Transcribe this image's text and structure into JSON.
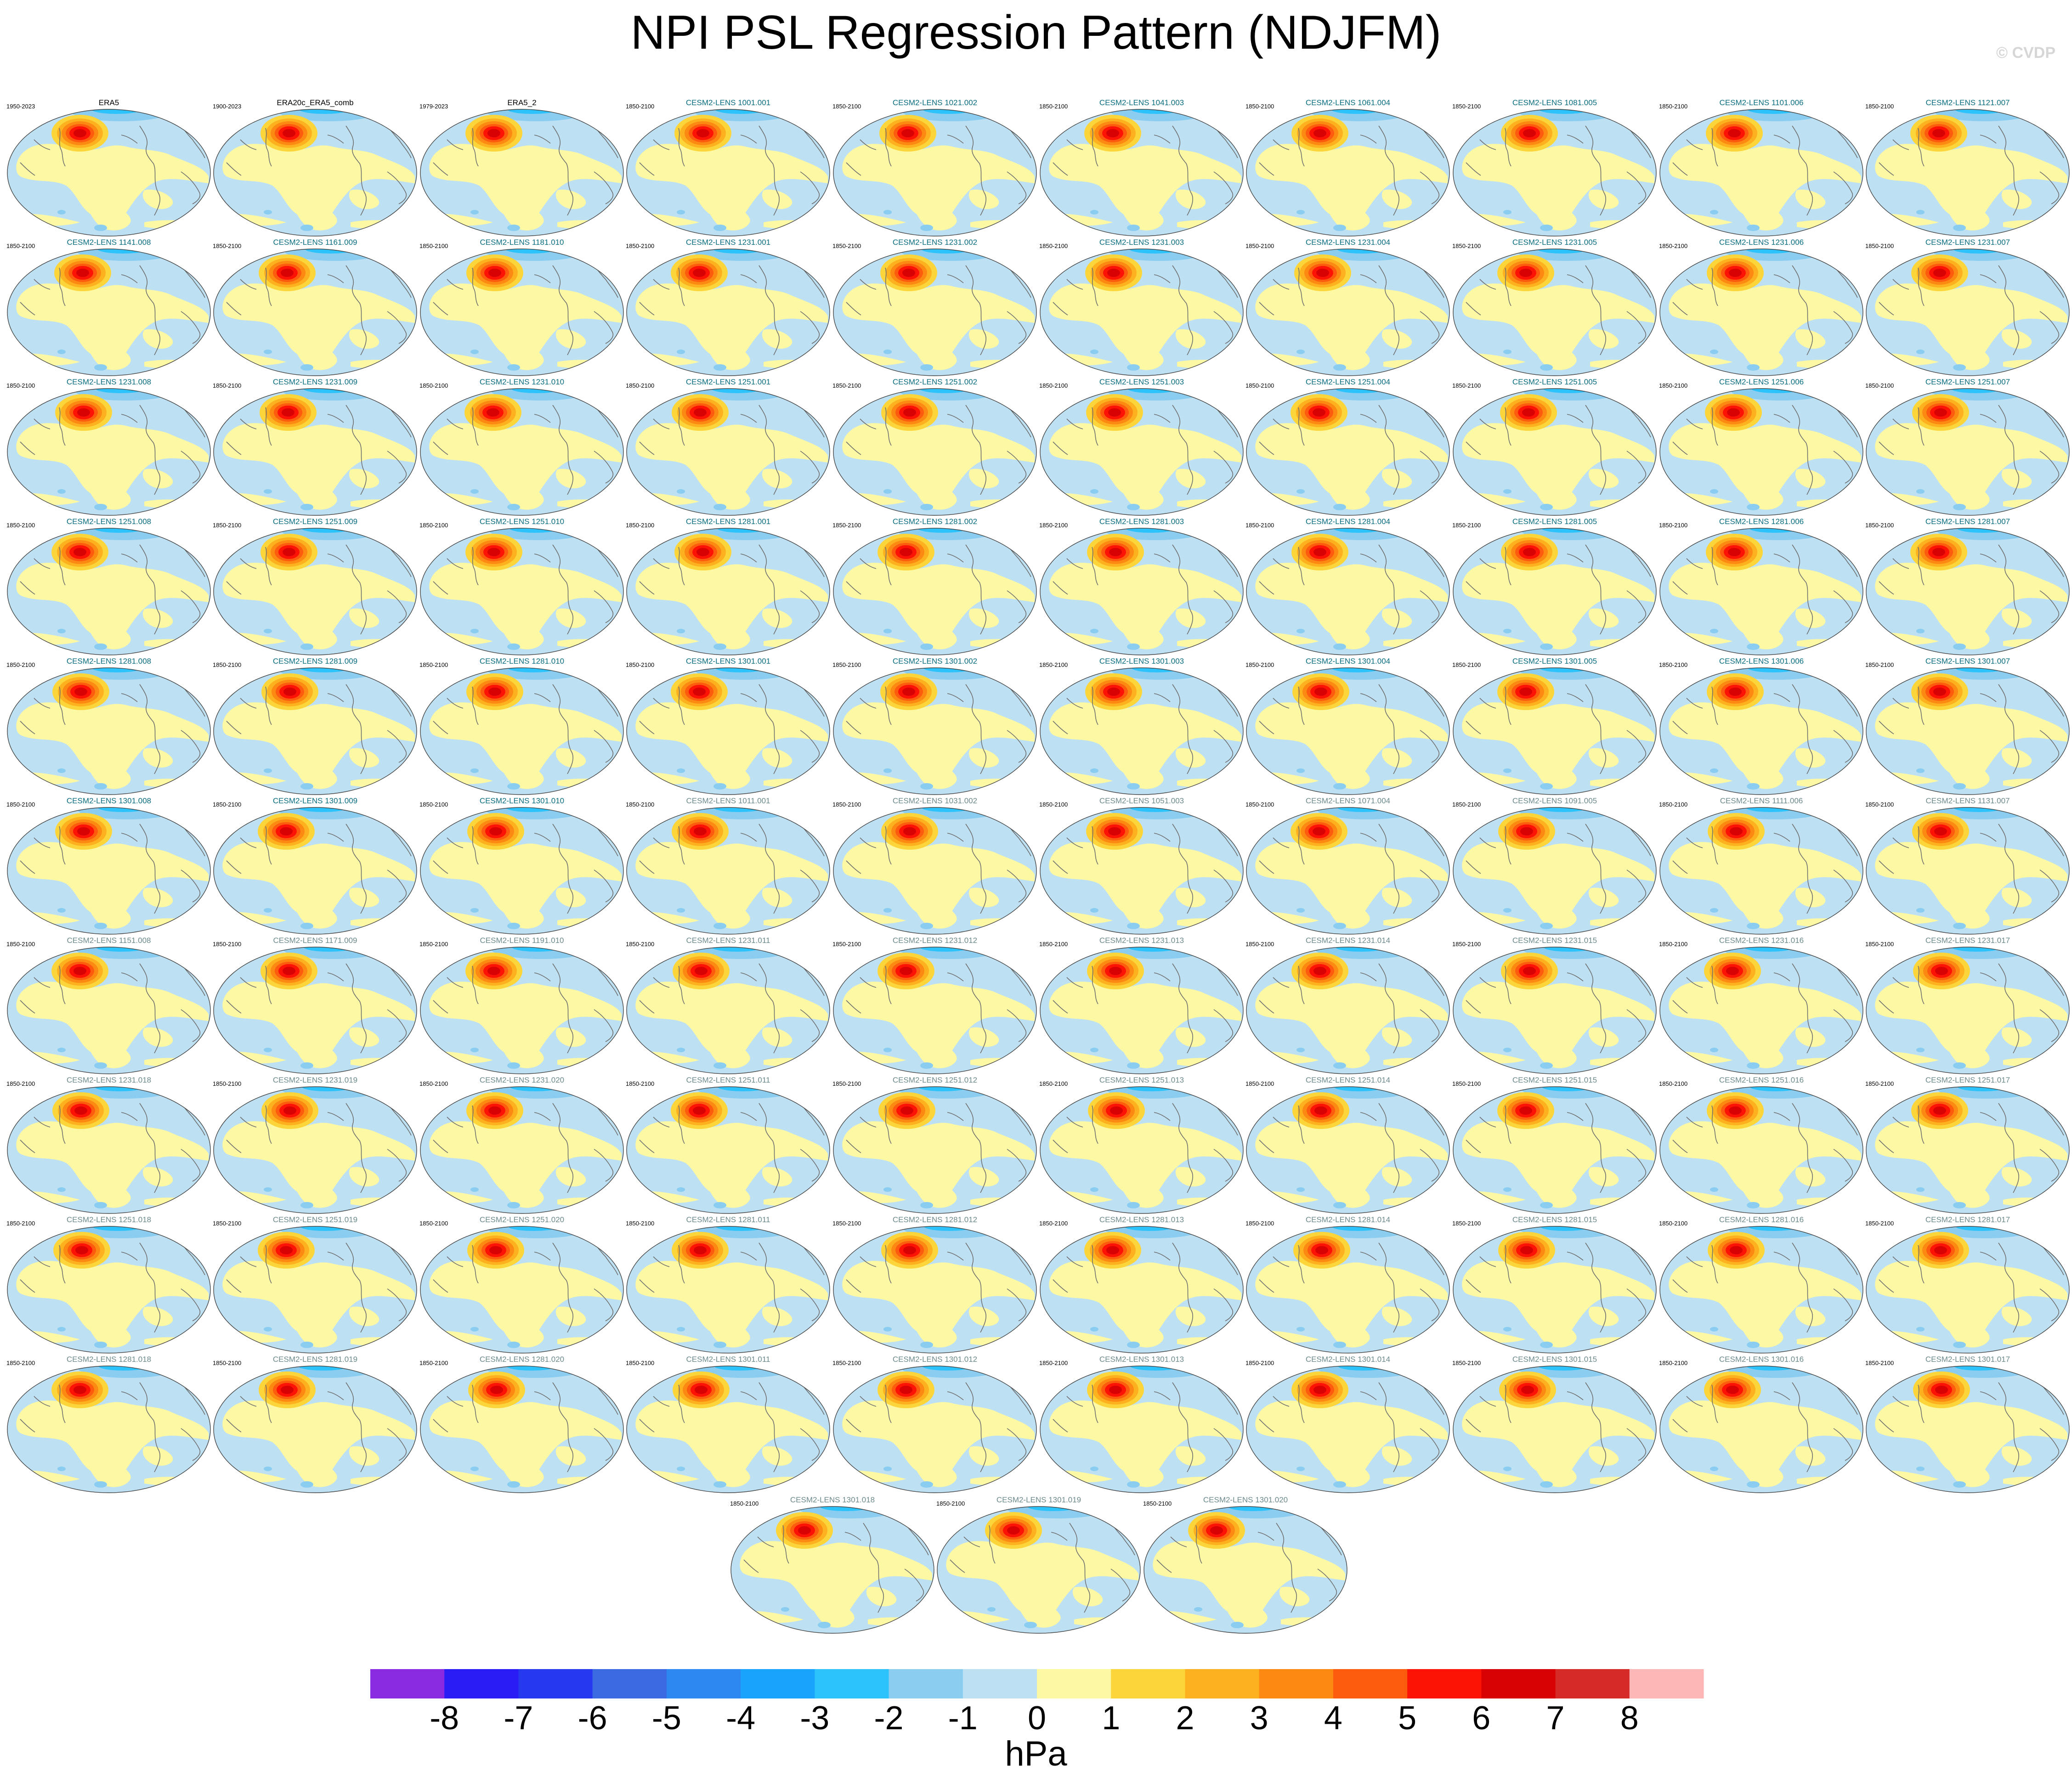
{
  "title": "NPI PSL Regression Pattern (NDJFM)",
  "watermark": "© CVDP",
  "units": "hPa",
  "colorbar": {
    "labels": [
      "-8",
      "-7",
      "-6",
      "-5",
      "-4",
      "-3",
      "-2",
      "-1",
      "0",
      "1",
      "2",
      "3",
      "4",
      "5",
      "6",
      "7",
      "8"
    ],
    "colors": [
      "#8a2be2",
      "#2a1cf5",
      "#2639ee",
      "#3c6ae1",
      "#2e88f2",
      "#1aa3fa",
      "#2cc2fb",
      "#8acdf0",
      "#bde0f3",
      "#fdf8a3",
      "#fcd53b",
      "#fdb11f",
      "#fc8a12",
      "#fd5b0d",
      "#fc1305",
      "#d80205",
      "#d52a28",
      "#fdb7b6"
    ]
  },
  "chart_data": {
    "type": "map-grid",
    "title": "NPI PSL Regression Pattern (NDJFM)",
    "units": "hPa",
    "color_levels": [
      -8,
      -7,
      -6,
      -5,
      -4,
      -3,
      -2,
      -1,
      0,
      1,
      2,
      3,
      4,
      5,
      6,
      7,
      8
    ],
    "panels": [
      {
        "title": "ERA5",
        "years": "1950-2023",
        "kind": "obs"
      },
      {
        "title": "ERA20c_ERA5_comb",
        "years": "1900-2023",
        "kind": "obs"
      },
      {
        "title": "ERA5_2",
        "years": "1979-2023",
        "kind": "obs"
      },
      {
        "title": "CESM2-LENS 1001.001",
        "years": "1850-2100"
      },
      {
        "title": "CESM2-LENS 1021.002",
        "years": "1850-2100"
      },
      {
        "title": "CESM2-LENS 1041.003",
        "years": "1850-2100"
      },
      {
        "title": "CESM2-LENS 1061.004",
        "years": "1850-2100"
      },
      {
        "title": "CESM2-LENS 1081.005",
        "years": "1850-2100"
      },
      {
        "title": "CESM2-LENS 1101.006",
        "years": "1850-2100"
      },
      {
        "title": "CESM2-LENS 1121.007",
        "years": "1850-2100"
      },
      {
        "title": "CESM2-LENS 1141.008",
        "years": "1850-2100"
      },
      {
        "title": "CESM2-LENS 1161.009",
        "years": "1850-2100"
      },
      {
        "title": "CESM2-LENS 1181.010",
        "years": "1850-2100"
      },
      {
        "title": "CESM2-LENS 1231.001",
        "years": "1850-2100"
      },
      {
        "title": "CESM2-LENS 1231.002",
        "years": "1850-2100"
      },
      {
        "title": "CESM2-LENS 1231.003",
        "years": "1850-2100"
      },
      {
        "title": "CESM2-LENS 1231.004",
        "years": "1850-2100"
      },
      {
        "title": "CESM2-LENS 1231.005",
        "years": "1850-2100"
      },
      {
        "title": "CESM2-LENS 1231.006",
        "years": "1850-2100"
      },
      {
        "title": "CESM2-LENS 1231.007",
        "years": "1850-2100"
      },
      {
        "title": "CESM2-LENS 1231.008",
        "years": "1850-2100"
      },
      {
        "title": "CESM2-LENS 1231.009",
        "years": "1850-2100"
      },
      {
        "title": "CESM2-LENS 1231.010",
        "years": "1850-2100"
      },
      {
        "title": "CESM2-LENS 1251.001",
        "years": "1850-2100"
      },
      {
        "title": "CESM2-LENS 1251.002",
        "years": "1850-2100"
      },
      {
        "title": "CESM2-LENS 1251.003",
        "years": "1850-2100"
      },
      {
        "title": "CESM2-LENS 1251.004",
        "years": "1850-2100"
      },
      {
        "title": "CESM2-LENS 1251.005",
        "years": "1850-2100"
      },
      {
        "title": "CESM2-LENS 1251.006",
        "years": "1850-2100"
      },
      {
        "title": "CESM2-LENS 1251.007",
        "years": "1850-2100"
      },
      {
        "title": "CESM2-LENS 1251.008",
        "years": "1850-2100"
      },
      {
        "title": "CESM2-LENS 1251.009",
        "years": "1850-2100"
      },
      {
        "title": "CESM2-LENS 1251.010",
        "years": "1850-2100"
      },
      {
        "title": "CESM2-LENS 1281.001",
        "years": "1850-2100"
      },
      {
        "title": "CESM2-LENS 1281.002",
        "years": "1850-2100"
      },
      {
        "title": "CESM2-LENS 1281.003",
        "years": "1850-2100"
      },
      {
        "title": "CESM2-LENS 1281.004",
        "years": "1850-2100"
      },
      {
        "title": "CESM2-LENS 1281.005",
        "years": "1850-2100"
      },
      {
        "title": "CESM2-LENS 1281.006",
        "years": "1850-2100"
      },
      {
        "title": "CESM2-LENS 1281.007",
        "years": "1850-2100"
      },
      {
        "title": "CESM2-LENS 1281.008",
        "years": "1850-2100"
      },
      {
        "title": "CESM2-LENS 1281.009",
        "years": "1850-2100"
      },
      {
        "title": "CESM2-LENS 1281.010",
        "years": "1850-2100"
      },
      {
        "title": "CESM2-LENS 1301.001",
        "years": "1850-2100"
      },
      {
        "title": "CESM2-LENS 1301.002",
        "years": "1850-2100"
      },
      {
        "title": "CESM2-LENS 1301.003",
        "years": "1850-2100"
      },
      {
        "title": "CESM2-LENS 1301.004",
        "years": "1850-2100"
      },
      {
        "title": "CESM2-LENS 1301.005",
        "years": "1850-2100"
      },
      {
        "title": "CESM2-LENS 1301.006",
        "years": "1850-2100"
      },
      {
        "title": "CESM2-LENS 1301.007",
        "years": "1850-2100"
      },
      {
        "title": "CESM2-LENS 1301.008",
        "years": "1850-2100"
      },
      {
        "title": "CESM2-LENS 1301.009",
        "years": "1850-2100"
      },
      {
        "title": "CESM2-LENS 1301.010",
        "years": "1850-2100"
      },
      {
        "title": "CESM2-LENS 1011.001",
        "years": "1850-2100",
        "kind": "gray"
      },
      {
        "title": "CESM2-LENS 1031.002",
        "years": "1850-2100",
        "kind": "gray"
      },
      {
        "title": "CESM2-LENS 1051.003",
        "years": "1850-2100",
        "kind": "gray"
      },
      {
        "title": "CESM2-LENS 1071.004",
        "years": "1850-2100",
        "kind": "gray"
      },
      {
        "title": "CESM2-LENS 1091.005",
        "years": "1850-2100",
        "kind": "gray"
      },
      {
        "title": "CESM2-LENS 1111.006",
        "years": "1850-2100",
        "kind": "gray"
      },
      {
        "title": "CESM2-LENS 1131.007",
        "years": "1850-2100",
        "kind": "gray"
      },
      {
        "title": "CESM2-LENS 1151.008",
        "years": "1850-2100",
        "kind": "gray"
      },
      {
        "title": "CESM2-LENS 1171.009",
        "years": "1850-2100",
        "kind": "gray"
      },
      {
        "title": "CESM2-LENS 1191.010",
        "years": "1850-2100",
        "kind": "gray"
      },
      {
        "title": "CESM2-LENS 1231.011",
        "years": "1850-2100",
        "kind": "gray"
      },
      {
        "title": "CESM2-LENS 1231.012",
        "years": "1850-2100",
        "kind": "gray"
      },
      {
        "title": "CESM2-LENS 1231.013",
        "years": "1850-2100",
        "kind": "gray"
      },
      {
        "title": "CESM2-LENS 1231.014",
        "years": "1850-2100",
        "kind": "gray"
      },
      {
        "title": "CESM2-LENS 1231.015",
        "years": "1850-2100",
        "kind": "gray"
      },
      {
        "title": "CESM2-LENS 1231.016",
        "years": "1850-2100",
        "kind": "gray"
      },
      {
        "title": "CESM2-LENS 1231.017",
        "years": "1850-2100",
        "kind": "gray"
      },
      {
        "title": "CESM2-LENS 1231.018",
        "years": "1850-2100",
        "kind": "gray"
      },
      {
        "title": "CESM2-LENS 1231.019",
        "years": "1850-2100",
        "kind": "gray"
      },
      {
        "title": "CESM2-LENS 1231.020",
        "years": "1850-2100",
        "kind": "gray"
      },
      {
        "title": "CESM2-LENS 1251.011",
        "years": "1850-2100",
        "kind": "gray"
      },
      {
        "title": "CESM2-LENS 1251.012",
        "years": "1850-2100",
        "kind": "gray"
      },
      {
        "title": "CESM2-LENS 1251.013",
        "years": "1850-2100",
        "kind": "gray"
      },
      {
        "title": "CESM2-LENS 1251.014",
        "years": "1850-2100",
        "kind": "gray"
      },
      {
        "title": "CESM2-LENS 1251.015",
        "years": "1850-2100",
        "kind": "gray"
      },
      {
        "title": "CESM2-LENS 1251.016",
        "years": "1850-2100",
        "kind": "gray"
      },
      {
        "title": "CESM2-LENS 1251.017",
        "years": "1850-2100",
        "kind": "gray"
      },
      {
        "title": "CESM2-LENS 1251.018",
        "years": "1850-2100",
        "kind": "gray"
      },
      {
        "title": "CESM2-LENS 1251.019",
        "years": "1850-2100",
        "kind": "gray"
      },
      {
        "title": "CESM2-LENS 1251.020",
        "years": "1850-2100",
        "kind": "gray"
      },
      {
        "title": "CESM2-LENS 1281.011",
        "years": "1850-2100",
        "kind": "gray"
      },
      {
        "title": "CESM2-LENS 1281.012",
        "years": "1850-2100",
        "kind": "gray"
      },
      {
        "title": "CESM2-LENS 1281.013",
        "years": "1850-2100",
        "kind": "gray"
      },
      {
        "title": "CESM2-LENS 1281.014",
        "years": "1850-2100",
        "kind": "gray"
      },
      {
        "title": "CESM2-LENS 1281.015",
        "years": "1850-2100",
        "kind": "gray"
      },
      {
        "title": "CESM2-LENS 1281.016",
        "years": "1850-2100",
        "kind": "gray"
      },
      {
        "title": "CESM2-LENS 1281.017",
        "years": "1850-2100",
        "kind": "gray"
      },
      {
        "title": "CESM2-LENS 1281.018",
        "years": "1850-2100",
        "kind": "gray"
      },
      {
        "title": "CESM2-LENS 1281.019",
        "years": "1850-2100",
        "kind": "gray"
      },
      {
        "title": "CESM2-LENS 1281.020",
        "years": "1850-2100",
        "kind": "gray"
      },
      {
        "title": "CESM2-LENS 1301.011",
        "years": "1850-2100",
        "kind": "gray"
      },
      {
        "title": "CESM2-LENS 1301.012",
        "years": "1850-2100",
        "kind": "gray"
      },
      {
        "title": "CESM2-LENS 1301.013",
        "years": "1850-2100",
        "kind": "gray"
      },
      {
        "title": "CESM2-LENS 1301.014",
        "years": "1850-2100",
        "kind": "gray"
      },
      {
        "title": "CESM2-LENS 1301.015",
        "years": "1850-2100",
        "kind": "gray"
      },
      {
        "title": "CESM2-LENS 1301.016",
        "years": "1850-2100",
        "kind": "gray"
      },
      {
        "title": "CESM2-LENS 1301.017",
        "years": "1850-2100",
        "kind": "gray"
      },
      {
        "title": "CESM2-LENS 1301.018",
        "years": "1850-2100",
        "kind": "gray"
      },
      {
        "title": "CESM2-LENS 1301.019",
        "years": "1850-2100",
        "kind": "gray"
      },
      {
        "title": "CESM2-LENS 1301.020",
        "years": "1850-2100",
        "kind": "gray"
      }
    ]
  }
}
